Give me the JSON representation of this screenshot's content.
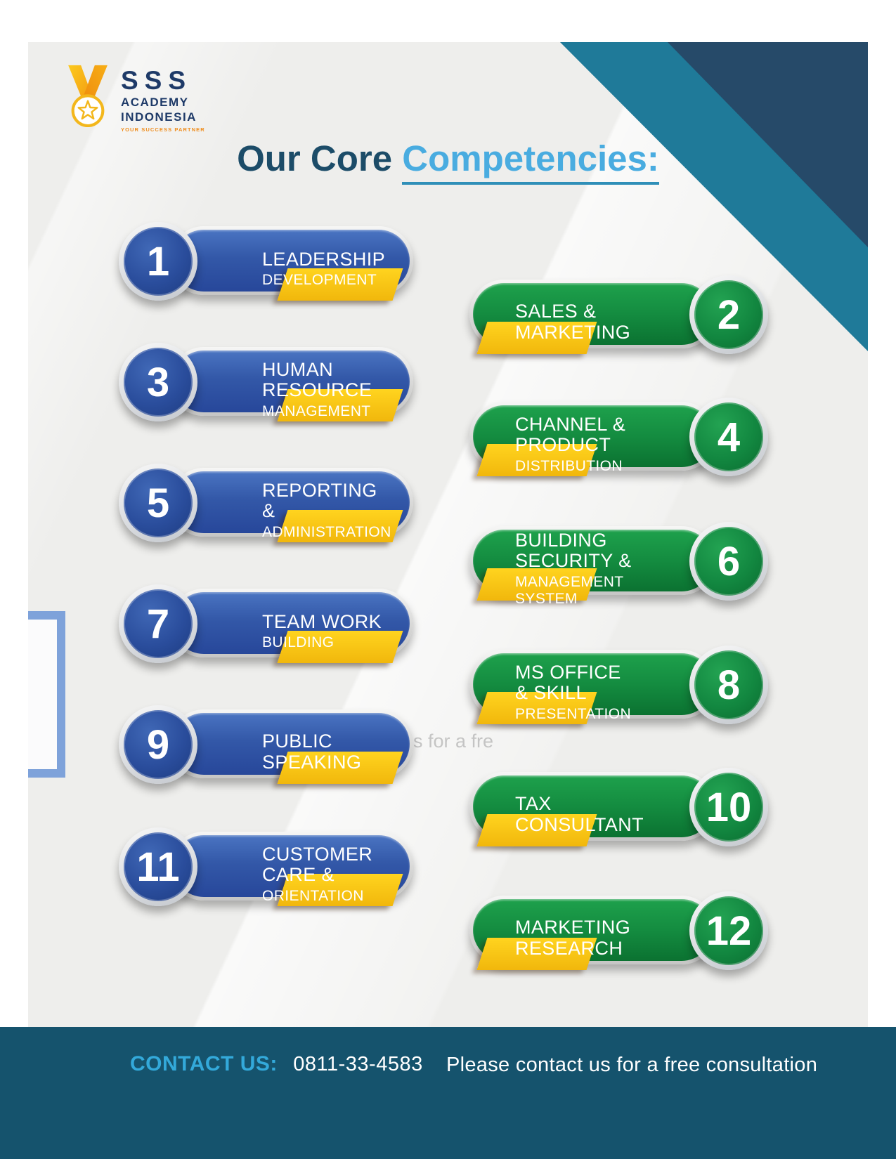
{
  "logo": {
    "name_line1": "SSS",
    "name_line2": "ACADEMY",
    "name_line3": "INDONESIA",
    "tagline": "YOUR SUCCESS PARTNER"
  },
  "title": {
    "prefix": "Our Core ",
    "highlight": "Competencies:"
  },
  "watermark_text": "s for a fre",
  "competencies": [
    {
      "number": "1",
      "side": "left",
      "line1": "LEADERSHIP",
      "line2": "DEVELOPMENT"
    },
    {
      "number": "2",
      "side": "right",
      "line1": "SALES & MARKETING",
      "line2": ""
    },
    {
      "number": "3",
      "side": "left",
      "line1": "HUMAN RESOURCE",
      "line2": "MANAGEMENT"
    },
    {
      "number": "4",
      "side": "right",
      "line1": "CHANNEL & PRODUCT",
      "line2": "DISTRIBUTION"
    },
    {
      "number": "5",
      "side": "left",
      "line1": "REPORTING &",
      "line2": "ADMINISTRATION"
    },
    {
      "number": "6",
      "side": "right",
      "line1": "BUILDING SECURITY &",
      "line2": "MANAGEMENT SYSTEM"
    },
    {
      "number": "7",
      "side": "left",
      "line1": "TEAM WORK",
      "line2": "BUILDING"
    },
    {
      "number": "8",
      "side": "right",
      "line1": "MS OFFICE & SKILL",
      "line2": "PRESENTATION"
    },
    {
      "number": "9",
      "side": "left",
      "line1": "PUBLIC SPEAKING",
      "line2": ""
    },
    {
      "number": "10",
      "side": "right",
      "line1": "TAX CONSULTANT",
      "line2": ""
    },
    {
      "number": "11",
      "side": "left",
      "line1": "CUSTOMER CARE &",
      "line2": "ORIENTATION"
    },
    {
      "number": "12",
      "side": "right",
      "line1": "MARKETING RESEARCH",
      "line2": ""
    }
  ],
  "footer": {
    "contact_label": "CONTACT US:",
    "phone": "0811-33-4583",
    "note": "Please contact us for a free consultation"
  },
  "colors": {
    "blue_pill": "#2c4f9e",
    "green_pill": "#128740",
    "accent_yellow": "#fdc712",
    "title_dark": "#1c4c68",
    "title_light": "#49ace0",
    "footer_bg": "#15536d",
    "corner_teal": "#1f7a99",
    "corner_navy": "#264a69"
  }
}
